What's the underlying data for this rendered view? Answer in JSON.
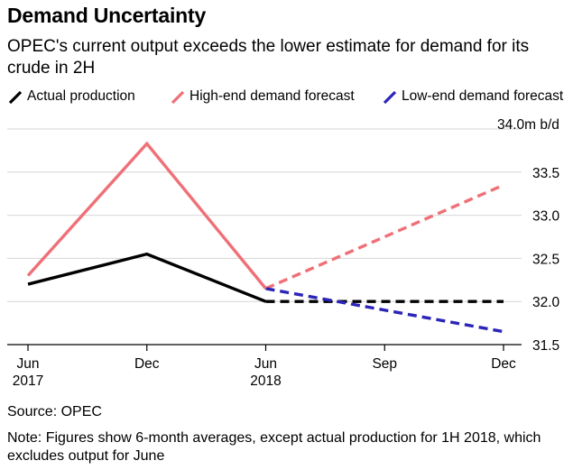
{
  "title": "Demand Uncertainty",
  "subtitle": "OPEC's current output exceeds the lower estimate for demand for its crude in 2H",
  "legend": {
    "actual": "Actual production",
    "high": "High-end demand forecast",
    "low": "Low-end demand forecast"
  },
  "source": "Source: OPEC",
  "note": "Note: Figures show 6-month averages, except actual production for 1H 2018, which excludes output for June",
  "colors": {
    "actual": "#000000",
    "high": "#ef7077",
    "low": "#2b24b8",
    "grid": "#d6d6d6",
    "axis": "#000000"
  },
  "chart_data": {
    "type": "line",
    "title": "Demand Uncertainty",
    "xlabel": "",
    "ylabel": "",
    "ylim": [
      31.5,
      34.0
    ],
    "y_ticks": [
      {
        "value": 34.0,
        "label": "34.0m b/d"
      },
      {
        "value": 33.5,
        "label": "33.5"
      },
      {
        "value": 33.0,
        "label": "33.0"
      },
      {
        "value": 32.5,
        "label": "32.5"
      },
      {
        "value": 32.0,
        "label": "32.0"
      },
      {
        "value": 31.5,
        "label": "31.5"
      }
    ],
    "x_ticks": [
      {
        "pos": 0,
        "line1": "Jun",
        "line2": "2017"
      },
      {
        "pos": 6,
        "line1": "Dec",
        "line2": ""
      },
      {
        "pos": 12,
        "line1": "Jun",
        "line2": "2018"
      },
      {
        "pos": 18,
        "line1": "Sep",
        "line2": ""
      },
      {
        "pos": 24,
        "line1": "Dec",
        "line2": ""
      }
    ],
    "series": [
      {
        "name": "Actual production",
        "key": "actual",
        "points": [
          [
            0,
            32.2
          ],
          [
            6,
            32.55
          ],
          [
            12,
            32.0
          ]
        ],
        "dashed": false
      },
      {
        "name": "Actual production (projected)",
        "key": "actual",
        "points": [
          [
            12,
            32.0
          ],
          [
            24,
            32.0
          ]
        ],
        "dashed": true
      },
      {
        "name": "High-end demand forecast",
        "key": "high",
        "points": [
          [
            0,
            32.3
          ],
          [
            6,
            33.83
          ],
          [
            12,
            32.15
          ]
        ],
        "dashed": false
      },
      {
        "name": "High-end demand forecast (projected)",
        "key": "high",
        "points": [
          [
            12,
            32.15
          ],
          [
            24,
            33.35
          ]
        ],
        "dashed": true
      },
      {
        "name": "Low-end demand forecast",
        "key": "low",
        "points": [
          [
            12,
            32.15
          ],
          [
            24,
            31.65
          ]
        ],
        "dashed": true
      }
    ]
  }
}
